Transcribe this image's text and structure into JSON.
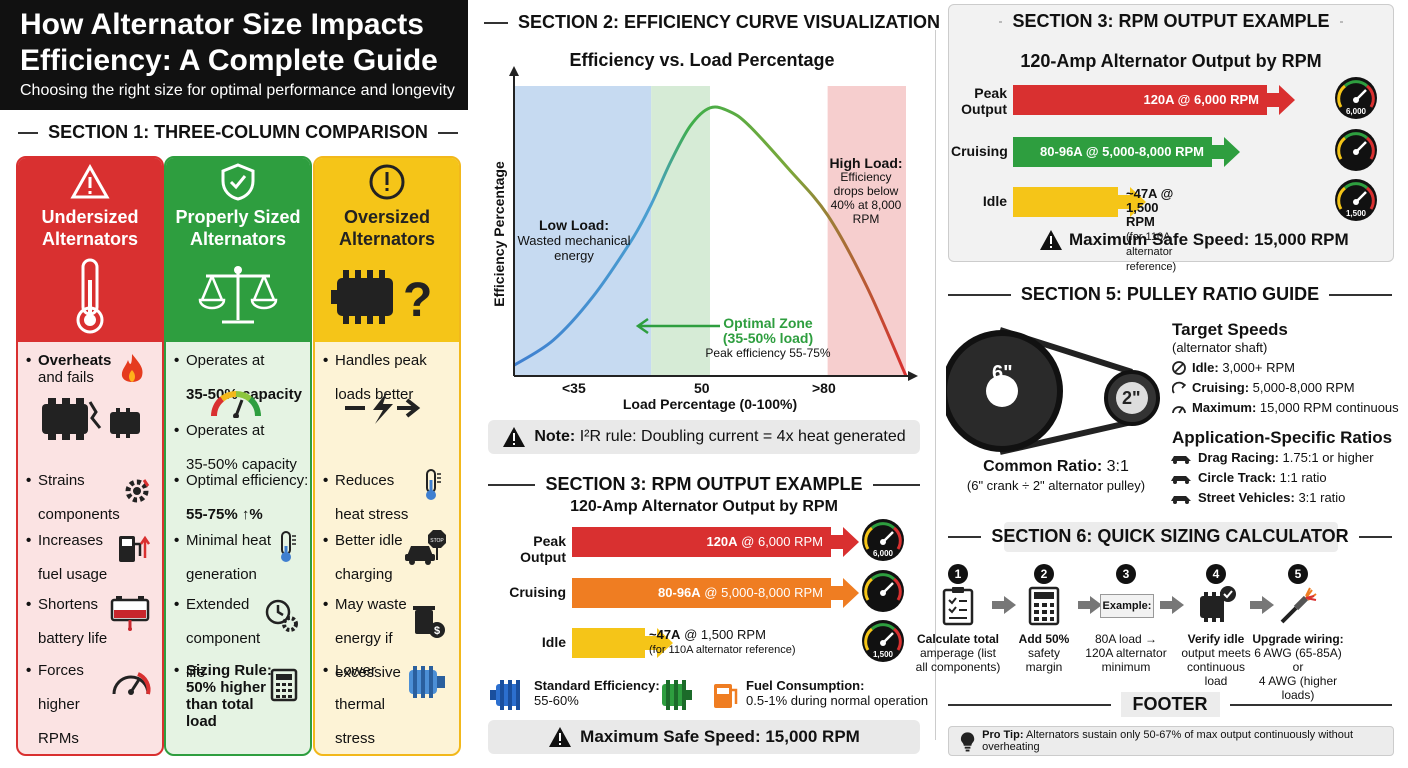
{
  "header": {
    "title_line1": "How Alternator Size Impacts",
    "title_line2": "Efficiency: A Complete Guide",
    "subtitle": "Choosing the right size for optimal performance and longevity"
  },
  "section1": {
    "heading": "SECTION 1: THREE-COLUMN COMPARISON",
    "columns": [
      {
        "title_line1": "Undersized",
        "title_line2": "Alternators",
        "color": "#d93030",
        "items": [
          {
            "l1": "Overheats",
            "l2": "and fails",
            "bold": true
          },
          {
            "l1": "Strains",
            "l2": "components"
          },
          {
            "l1": "Increases",
            "l2": "fuel usage"
          },
          {
            "l1": "Shortens",
            "l2": "battery life"
          },
          {
            "l1": "Forces",
            "l2": "higher",
            "l3": "RPMs"
          }
        ]
      },
      {
        "title_line1": "Properly Sized",
        "title_line2": "Alternators",
        "color": "#2e9e3f",
        "items": [
          {
            "l1": "Operates at",
            "l2": "35-50% capacity"
          },
          {
            "l1": "Operates at",
            "l2": "35-50% capacity"
          },
          {
            "l1": "Optimal efficiency:",
            "l2": "55-75%"
          },
          {
            "l1": "Minimal heat",
            "l2": "generation"
          },
          {
            "l1": "Extended",
            "l2": "component",
            "l3": "life"
          },
          {
            "l1": "Sizing Rule:",
            "l2": "50% higher",
            "l3": "than total",
            "l4": "load"
          }
        ]
      },
      {
        "title_line1": "Oversized",
        "title_line2": "Alternators",
        "color": "#f2b81b",
        "items": [
          {
            "l1": "Handles peak",
            "l2": "loads better"
          },
          {
            "l1": "Reduces",
            "l2": "heat stress"
          },
          {
            "l1": "Better idle",
            "l2": "charging"
          },
          {
            "l1": "May waste",
            "l2": "energy if",
            "l3": "excessive"
          },
          {
            "l1": "Lower",
            "l2": "thermal",
            "l3": "stress"
          }
        ]
      }
    ]
  },
  "section2": {
    "heading": "SECTION 2: EFFICIENCY CURVE VISUALIZATION",
    "chart_title": "Efficiency vs. Load Percentage",
    "ylabel": "Efficiency Percentage",
    "xlabel": "Load Percentage (0-100%)",
    "ticks": [
      "<35",
      "50",
      ">80"
    ],
    "low_title": "Low Load:",
    "low_text1": "Wasted mechanical",
    "low_text2": "energy",
    "opt_title1": "Optimal Zone",
    "opt_title2": "(35-50% load)",
    "opt_text": "Peak efficiency 55-75%",
    "high_title": "High Load:",
    "high_text1": "Efficiency",
    "high_text2": "drops below",
    "high_text3": "40% at 8,000",
    "high_text4": "RPM",
    "note_label": "Note:",
    "note_text": "I²R rule: Doubling current = 4x heat generated"
  },
  "chart_data": {
    "type": "line",
    "title": "Efficiency vs. Load Percentage",
    "xlabel": "Load Percentage (0-100%)",
    "ylabel": "Efficiency Percentage",
    "x": [
      0,
      10,
      20,
      30,
      35,
      40,
      45,
      50,
      55,
      60,
      70,
      80,
      90,
      100
    ],
    "values": [
      3,
      10,
      22,
      38,
      48,
      60,
      70,
      75,
      74,
      70,
      58,
      45,
      25,
      0
    ],
    "zones": [
      {
        "label": "Low Load",
        "from": 0,
        "to": 35,
        "color": "#bcd4ee"
      },
      {
        "label": "Optimal Zone",
        "from": 35,
        "to": 50,
        "color": "#cfe8cf"
      },
      {
        "label": "High Load",
        "from": 80,
        "to": 100,
        "color": "#f5c6c6"
      }
    ],
    "xlim": [
      0,
      100
    ],
    "ylim": [
      0,
      80
    ]
  },
  "section3_top": {
    "heading": "SECTION 3: RPM OUTPUT EXAMPLE",
    "subheading": "120-Amp Alternator Output by RPM",
    "rows": [
      {
        "label1": "Peak",
        "label2": "Output",
        "value": "120A @ 6,000 RPM",
        "color": "#d93030",
        "fill": 0.92,
        "gauge": "6,000"
      },
      {
        "label1": "Cruising",
        "label2": "",
        "value": "80-96A @ 5,000-8,000 RPM",
        "color": "#2e9e3f",
        "fill": 0.72,
        "gauge": ""
      },
      {
        "label1": "Idle",
        "label2": "",
        "value": "~47A @ 1,500 RPM",
        "sub": "(for 110A alternator reference)",
        "color": "#f5c518",
        "fill": 0.38,
        "gauge": "1,500"
      }
    ],
    "footer": "Maximum Safe Speed: 15,000 RPM"
  },
  "section3_mid": {
    "heading": "SECTION 3: RPM OUTPUT EXAMPLE",
    "subheading": "120-Amp Alternator Output by RPM",
    "rows": [
      {
        "label": "Peak Output",
        "value_bold": "120A",
        "value_rest": " @ 6,000 RPM",
        "color": "#d93030",
        "fill": 0.92,
        "gauge": "6,000"
      },
      {
        "label": "Cruising",
        "value_bold": "80-96A",
        "value_rest": " @ 5,000-8,000 RPM",
        "color": "#ef7d22",
        "fill": 0.92,
        "gauge": ""
      },
      {
        "label": "Idle",
        "value_bold": "~47A",
        "value_rest": " @ 1,500 RPM",
        "sub": "(for 110A alternator reference)",
        "color": "#f5c518",
        "fill": 0.26,
        "gauge": "1,500"
      }
    ],
    "std_label": "Standard Efficiency:",
    "std_value": "55-60%",
    "fuel_label": "Fuel Consumption:",
    "fuel_value": "0.5-1% during normal operation",
    "footer": "Maximum Safe Speed: 15,000 RPM"
  },
  "section5": {
    "heading": "SECTION 5: PULLEY RATIO GUIDE",
    "big_pulley": "6\"",
    "small_pulley": "2\"",
    "ratio_label": "Common Ratio:",
    "ratio_value": "3:1",
    "ratio_note": "(6\" crank ÷ 2\" alternator pulley)",
    "target_title": "Target Speeds",
    "target_sub": "(alternator shaft)",
    "targets": [
      {
        "label": "Idle:",
        "value": "3,000+ RPM"
      },
      {
        "label": "Cruising:",
        "value": "5,000-8,000 RPM"
      },
      {
        "label": "Maximum:",
        "value": "15,000 RPM continuous"
      }
    ],
    "app_title": "Application-Specific Ratios",
    "apps": [
      {
        "label": "Drag Racing:",
        "value": "1.75:1 or higher"
      },
      {
        "label": "Circle Track:",
        "value": "1:1 ratio"
      },
      {
        "label": "Street Vehicles:",
        "value": "3:1 ratio"
      }
    ]
  },
  "section6": {
    "heading": "SECTION 6: QUICK SIZING CALCULATOR",
    "steps": [
      {
        "num": "1",
        "l1": "Calculate total",
        "l2": "amperage (list",
        "l3": "all components)"
      },
      {
        "num": "2",
        "l1": "Add 50%",
        "l2": "safety",
        "l3": "margin"
      },
      {
        "num": "3",
        "tag": "Example:",
        "l1": "80A load →",
        "l2": "120A alternator",
        "l3": "minimum"
      },
      {
        "num": "4",
        "l1": "Verify idle",
        "l2": "output meets",
        "l3": "continuous",
        "l4": "load"
      },
      {
        "num": "5",
        "l1": "Upgrade wiring:",
        "l2": "6 AWG (65-85A) or",
        "l3": "4 AWG (higher",
        "l4": "loads)"
      }
    ]
  },
  "footer": {
    "heading": "FOOTER",
    "tip_label": "Pro Tip:",
    "tip_text": "Alternators sustain only 50-67% of max output continuously without overheating"
  }
}
